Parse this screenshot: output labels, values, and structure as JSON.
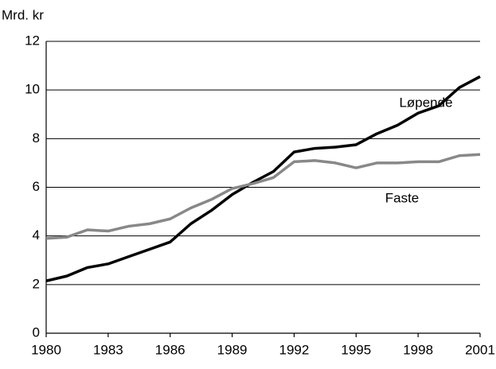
{
  "chart_data": {
    "type": "line",
    "ylabel": "Mrd. kr",
    "x": [
      1980,
      1981,
      1982,
      1983,
      1984,
      1985,
      1986,
      1987,
      1988,
      1989,
      1990,
      1991,
      1992,
      1993,
      1994,
      1995,
      1996,
      1997,
      1998,
      1999,
      2000,
      2001
    ],
    "series": [
      {
        "name": "Løpende",
        "color": "#000000",
        "values": [
          2.15,
          2.35,
          2.7,
          2.85,
          3.15,
          3.45,
          3.75,
          4.5,
          5.05,
          5.7,
          6.2,
          6.65,
          7.45,
          7.6,
          7.65,
          7.75,
          8.2,
          8.55,
          9.05,
          9.35,
          10.1,
          10.55
        ]
      },
      {
        "name": "Faste",
        "color": "#888888",
        "values": [
          3.9,
          3.95,
          4.25,
          4.2,
          4.4,
          4.5,
          4.7,
          5.15,
          5.5,
          5.95,
          6.15,
          6.4,
          7.05,
          7.1,
          7.0,
          6.8,
          7.0,
          7.0,
          7.05,
          7.05,
          7.3,
          7.35
        ]
      }
    ],
    "xlim": [
      1980,
      2001
    ],
    "xticks": [
      1980,
      1983,
      1986,
      1989,
      1992,
      1995,
      1998,
      2001
    ],
    "ylim": [
      0,
      12
    ],
    "yticks": [
      0,
      2,
      4,
      6,
      8,
      10,
      12
    ],
    "grid": true
  }
}
